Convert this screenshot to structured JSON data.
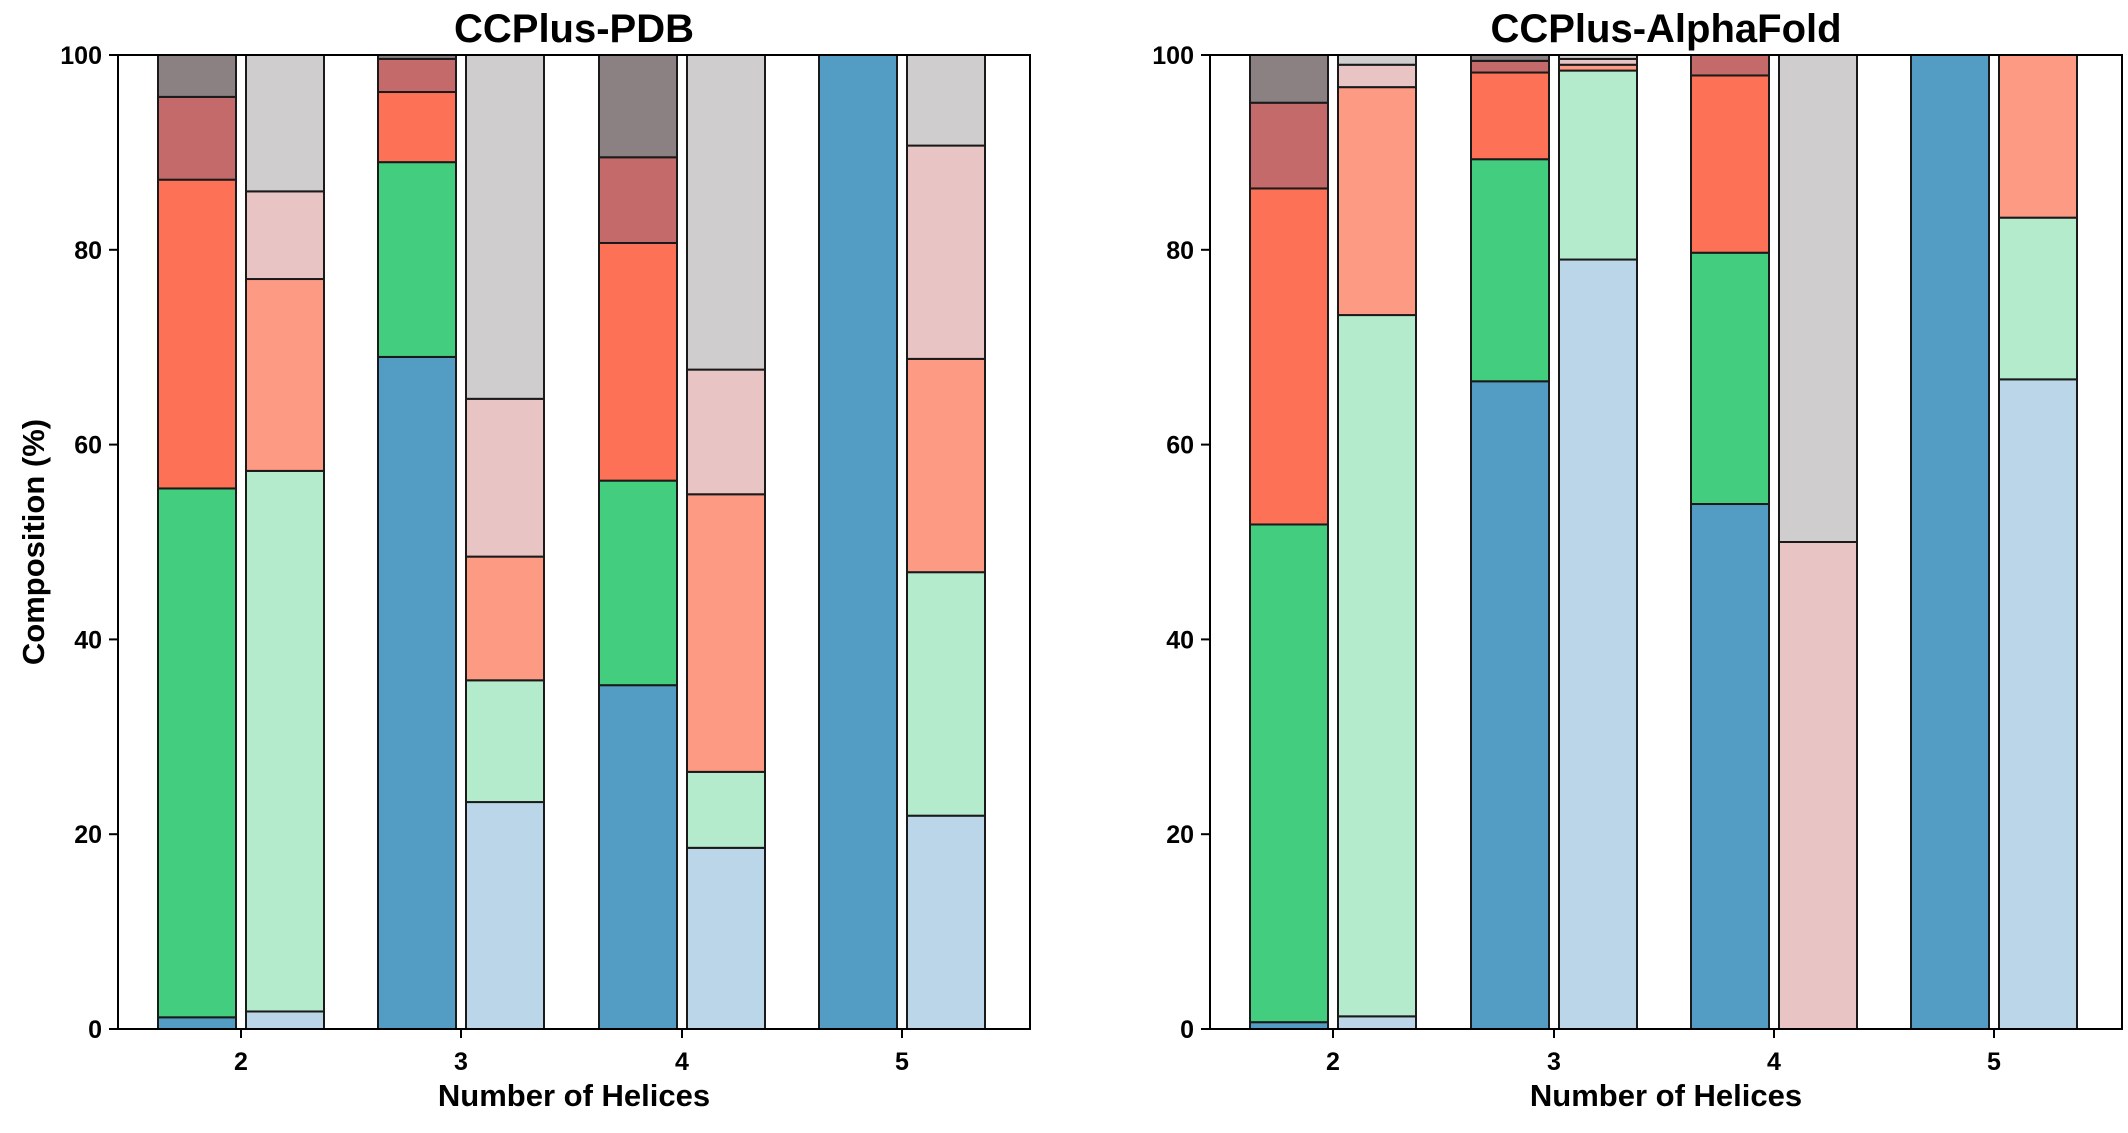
{
  "chart_data": [
    {
      "type": "bar",
      "title": "CCPlus-PDB",
      "xlabel": "Number of Helices",
      "ylabel": "Composition (%)",
      "ylim": [
        0,
        100
      ],
      "yticks": [
        0,
        20,
        40,
        60,
        80,
        100
      ],
      "categories": [
        "2",
        "3",
        "4",
        "5"
      ],
      "bars_per_category": 2,
      "stacked": true,
      "grid": false,
      "bar_groups": [
        {
          "category": "2",
          "bars": [
            {
              "palette": "dark",
              "segments": [
                1.2,
                54.3,
                31.7,
                8.5,
                4.3
              ]
            },
            {
              "palette": "light",
              "segments": [
                1.8,
                55.5,
                19.7,
                9.0,
                14.0
              ]
            }
          ]
        },
        {
          "category": "3",
          "bars": [
            {
              "palette": "dark",
              "segments": [
                69.0,
                20.0,
                7.2,
                3.4,
                0.4
              ]
            },
            {
              "palette": "light",
              "segments": [
                23.3,
                12.5,
                12.7,
                16.2,
                35.3
              ]
            }
          ]
        },
        {
          "category": "4",
          "bars": [
            {
              "palette": "dark",
              "segments": [
                35.3,
                21.0,
                24.4,
                8.8,
                10.5
              ]
            },
            {
              "palette": "light",
              "segments": [
                18.6,
                7.8,
                28.5,
                12.8,
                32.3
              ]
            }
          ]
        },
        {
          "category": "5",
          "bars": [
            {
              "palette": "dark",
              "segments": [
                100,
                0,
                0,
                0,
                0
              ]
            },
            {
              "palette": "light",
              "segments": [
                21.9,
                25.0,
                21.9,
                21.9,
                9.3
              ]
            }
          ]
        }
      ]
    },
    {
      "type": "bar",
      "title": "CCPlus-AlphaFold",
      "xlabel": "Number of Helices",
      "ylabel": "",
      "ylim": [
        0,
        100
      ],
      "yticks": [
        0,
        20,
        40,
        60,
        80,
        100
      ],
      "categories": [
        "2",
        "3",
        "4",
        "5"
      ],
      "bars_per_category": 2,
      "stacked": true,
      "grid": false,
      "bar_groups": [
        {
          "category": "2",
          "bars": [
            {
              "palette": "dark",
              "segments": [
                0.7,
                51.1,
                34.5,
                8.8,
                4.9
              ]
            },
            {
              "palette": "light",
              "segments": [
                1.3,
                72.0,
                23.4,
                2.3,
                1.0
              ]
            }
          ]
        },
        {
          "category": "3",
          "bars": [
            {
              "palette": "dark",
              "segments": [
                66.5,
                22.8,
                8.9,
                1.2,
                0.6
              ]
            },
            {
              "palette": "light",
              "segments": [
                79.0,
                19.4,
                0.6,
                0.6,
                0.4
              ]
            }
          ]
        },
        {
          "category": "4",
          "bars": [
            {
              "palette": "dark",
              "segments": [
                53.9,
                25.8,
                18.2,
                2.1,
                0
              ]
            },
            {
              "palette": "light",
              "segments": [
                0,
                0,
                0,
                50.0,
                50.0
              ]
            }
          ]
        },
        {
          "category": "5",
          "bars": [
            {
              "palette": "dark",
              "segments": [
                100,
                0,
                0,
                0,
                0
              ]
            },
            {
              "palette": "light",
              "segments": [
                66.7,
                16.6,
                16.7,
                0,
                0
              ]
            }
          ]
        }
      ]
    }
  ],
  "palettes": {
    "dark": [
      "#539cc4",
      "#43cd7e",
      "#fd7256",
      "#c46a6b",
      "#8b8183"
    ],
    "light": [
      "#bad6e8",
      "#b3ebcc",
      "#fd9a84",
      "#e8c4c4",
      "#d0cdcf"
    ]
  }
}
